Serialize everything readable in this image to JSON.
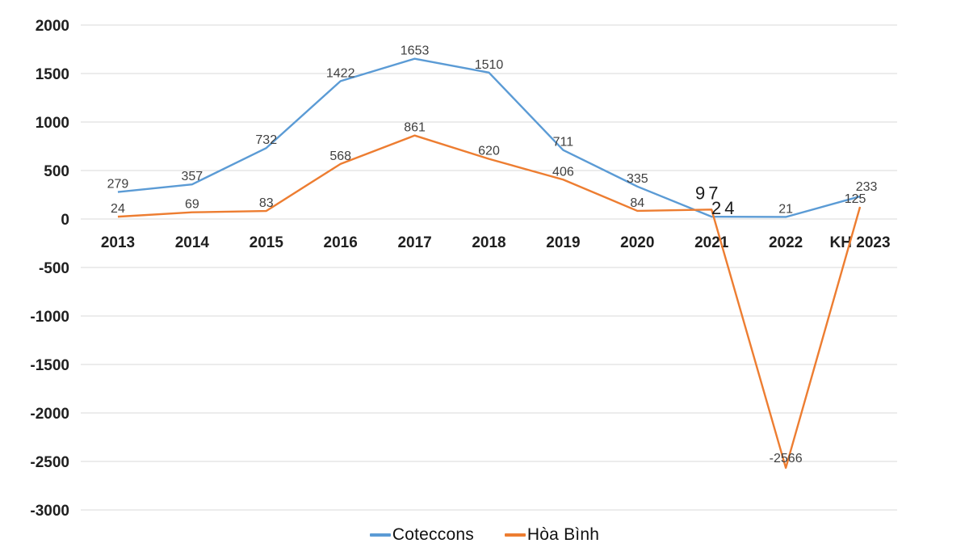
{
  "chart_data": {
    "type": "line",
    "title": "",
    "xlabel": "",
    "ylabel": "",
    "categories": [
      "2013",
      "2014",
      "2015",
      "2016",
      "2017",
      "2018",
      "2019",
      "2020",
      "2021",
      "2022",
      "KH 2023"
    ],
    "series": [
      {
        "name": "Coteccons",
        "color": "#5B9BD5",
        "values": [
          279,
          357,
          732,
          1422,
          1653,
          1510,
          711,
          335,
          24,
          21,
          233
        ]
      },
      {
        "name": "Hòa Bình",
        "color": "#ED7D31",
        "values": [
          24,
          69,
          83,
          568,
          861,
          620,
          406,
          84,
          97,
          -2566,
          125
        ]
      }
    ],
    "y_ticks": [
      2000,
      1500,
      1000,
      500,
      0,
      -500,
      -1000,
      -1500,
      -2000,
      -2500,
      -3000
    ],
    "ylim": [
      -3000,
      2000
    ],
    "grid": true,
    "gridline_color": "#d9d9d9",
    "data_labels": true,
    "data_label_color": "#3f3f3f",
    "axis_label_color": "#1f1f1f",
    "legend_position": "bottom"
  },
  "legend": {
    "items": [
      {
        "label": "Coteccons",
        "color": "#5B9BD5"
      },
      {
        "label": "Hòa Bình",
        "color": "#ED7D31"
      }
    ]
  }
}
